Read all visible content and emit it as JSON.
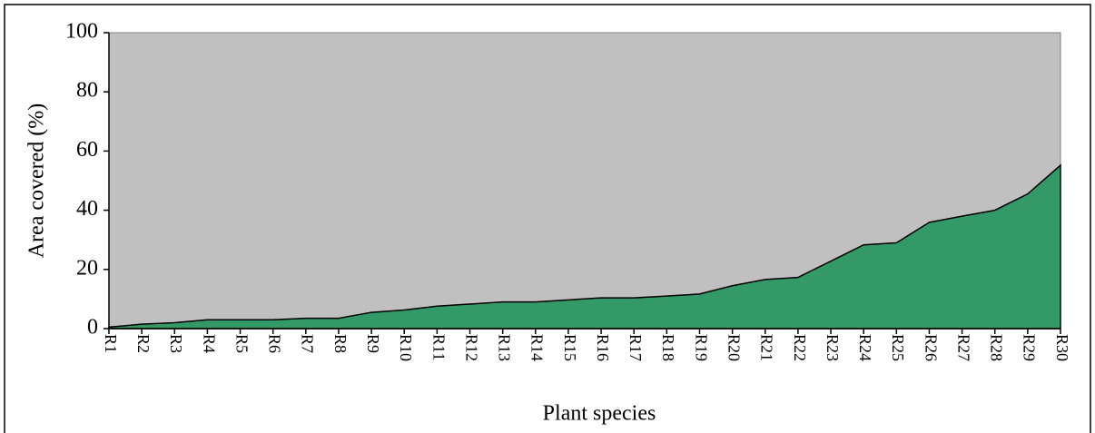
{
  "chart_data": {
    "type": "area",
    "x_label": "Plant species",
    "y_label": "Area covered  (%)",
    "categories": [
      "R1",
      "R2",
      "R3",
      "R4",
      "R5",
      "R6",
      "R7",
      "R8",
      "R9",
      "R10",
      "R11",
      "R12",
      "R13",
      "R14",
      "R15",
      "R16",
      "R17",
      "R18",
      "R19",
      "R20",
      "R21",
      "R22",
      "R23",
      "R24",
      "R25",
      "R26",
      "R27",
      "R28",
      "R29",
      "R30"
    ],
    "values": [
      0.5,
      1.5,
      2,
      3,
      3,
      3,
      3.5,
      3.5,
      5.5,
      6.3,
      7.6,
      8.3,
      9,
      9,
      9.7,
      10.4,
      10.4,
      11,
      11.7,
      14.5,
      16.6,
      17.3,
      22.8,
      28.3,
      29,
      35.9,
      38,
      40,
      45.5,
      55.2
    ],
    "color": "#339966",
    "background": "#c0c0c0",
    "ylim": [
      0,
      100
    ],
    "yticks": [
      0,
      20,
      40,
      60,
      80,
      100
    ]
  }
}
